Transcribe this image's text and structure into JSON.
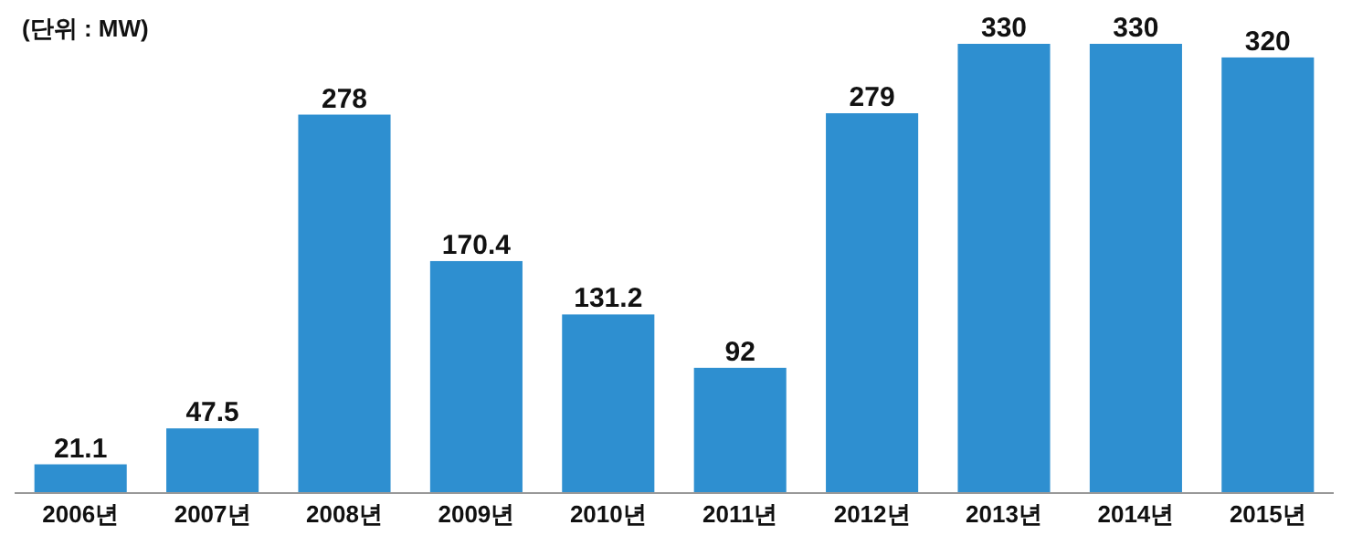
{
  "chart_data": {
    "type": "bar",
    "categories": [
      "2006년",
      "2007년",
      "2008년",
      "2009년",
      "2010년",
      "2011년",
      "2012년",
      "2013년",
      "2014년",
      "2015년"
    ],
    "values": [
      21.1,
      47.5,
      278,
      170.4,
      131.2,
      92,
      279,
      330,
      330,
      320
    ],
    "color": "#2e8fd0",
    "data_labels": true,
    "annotations": [
      "(단위 : MW)"
    ]
  }
}
